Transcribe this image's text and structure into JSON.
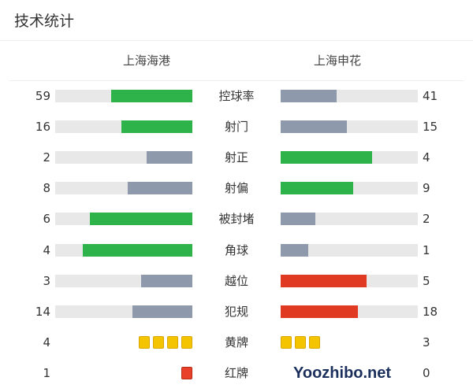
{
  "title": "技术统计",
  "home_team": "上海海港",
  "away_team": "上海申花",
  "colors": {
    "green": "#2eb24a",
    "gray": "#8e9aab",
    "red": "#e03a22",
    "track": "#e8e8e8",
    "yellow": "#f5c400",
    "yellow_border": "#d9a800",
    "card_red": "#e8402a",
    "card_red_border": "#b52a15"
  },
  "stats": [
    {
      "label": "控球率",
      "home": 59,
      "away": 41,
      "home_color": "green",
      "away_color": "gray"
    },
    {
      "label": "射门",
      "home": 16,
      "away": 15,
      "home_color": "green",
      "away_color": "gray"
    },
    {
      "label": "射正",
      "home": 2,
      "away": 4,
      "home_color": "gray",
      "away_color": "green"
    },
    {
      "label": "射偏",
      "home": 8,
      "away": 9,
      "home_color": "gray",
      "away_color": "green"
    },
    {
      "label": "被封堵",
      "home": 6,
      "away": 2,
      "home_color": "green",
      "away_color": "gray"
    },
    {
      "label": "角球",
      "home": 4,
      "away": 1,
      "home_color": "green",
      "away_color": "gray"
    },
    {
      "label": "越位",
      "home": 3,
      "away": 5,
      "home_color": "gray",
      "away_color": "red"
    },
    {
      "label": "犯规",
      "home": 14,
      "away": 18,
      "home_color": "gray",
      "away_color": "red"
    }
  ],
  "cards": [
    {
      "label": "黄牌",
      "home": 4,
      "away": 3,
      "type": "yellow"
    },
    {
      "label": "红牌",
      "home": 1,
      "away": 0,
      "type": "red"
    }
  ],
  "watermark": "Yoozhibo.net"
}
